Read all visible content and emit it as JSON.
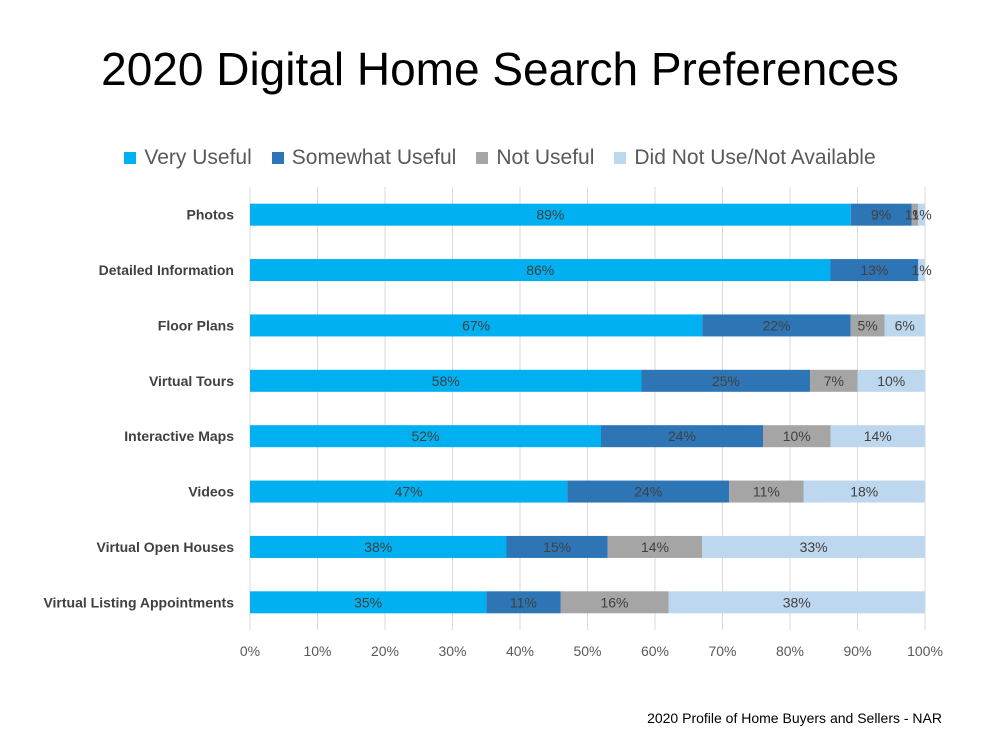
{
  "title": "2020 Digital Home Search Preferences",
  "source": "2020 Profile of Home Buyers and Sellers - NAR",
  "chart_data": {
    "type": "bar",
    "orientation": "horizontal",
    "stacked": true,
    "categories": [
      "Photos",
      "Detailed Information",
      "Floor Plans",
      "Virtual Tours",
      "Interactive Maps",
      "Videos",
      "Virtual Open Houses",
      "Virtual Listing Appointments"
    ],
    "series": [
      {
        "name": "Very Useful",
        "color": "#00b0f0",
        "values": [
          89,
          86,
          67,
          58,
          52,
          47,
          38,
          35
        ]
      },
      {
        "name": "Somewhat Useful",
        "color": "#2e75b6",
        "values": [
          9,
          13,
          22,
          25,
          24,
          24,
          15,
          11
        ]
      },
      {
        "name": "Not Useful",
        "color": "#a5a5a5",
        "values": [
          1,
          0,
          5,
          7,
          10,
          11,
          14,
          16
        ]
      },
      {
        "name": "Did Not Use/Not Available",
        "color": "#bdd7ee",
        "values": [
          1,
          1,
          6,
          10,
          14,
          18,
          33,
          38
        ]
      }
    ],
    "xlim": [
      0,
      100
    ],
    "xticks": [
      "0%",
      "10%",
      "20%",
      "30%",
      "40%",
      "50%",
      "60%",
      "70%",
      "80%",
      "90%",
      "100%"
    ],
    "legend_position": "top",
    "grid": true
  }
}
